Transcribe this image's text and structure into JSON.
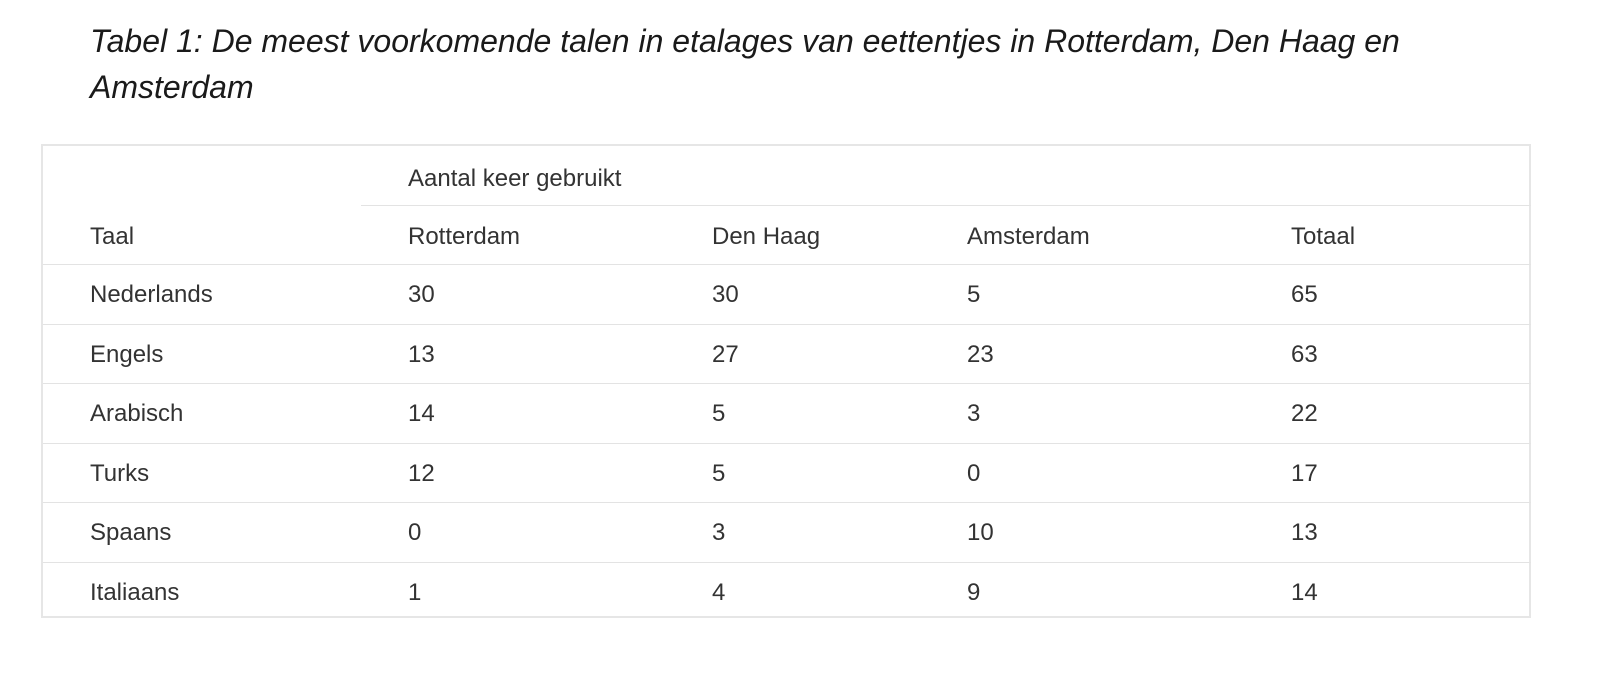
{
  "caption": "Tabel 1: De meest voorkomende talen in etalages van eettentjes in Rotterdam, Den Haag en Amsterdam",
  "table": {
    "group_header": "Aantal keer gebruikt",
    "columns": [
      "Taal",
      "Rotterdam",
      "Den Haag",
      "Amsterdam",
      "Totaal"
    ],
    "rows": [
      [
        "Nederlands",
        "30",
        "30",
        "5",
        "65"
      ],
      [
        "Engels",
        "13",
        "27",
        "23",
        "63"
      ],
      [
        "Arabisch",
        "14",
        "5",
        "3",
        "22"
      ],
      [
        "Turks",
        "12",
        "5",
        "0",
        "17"
      ],
      [
        "Spaans",
        "0",
        "3",
        "10",
        "13"
      ],
      [
        "Italiaans",
        "1",
        "4",
        "9",
        "14"
      ]
    ]
  }
}
